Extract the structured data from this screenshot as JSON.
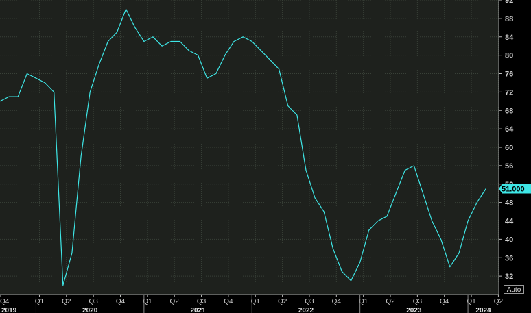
{
  "chart_data": {
    "type": "line",
    "title": "",
    "xlabel": "",
    "ylabel": "",
    "ylim": [
      28,
      92
    ],
    "yticks": [
      32,
      36,
      40,
      44,
      48,
      52,
      56,
      60,
      64,
      68,
      72,
      76,
      80,
      84,
      88,
      92
    ],
    "grid": true,
    "last_value_label": "51.000",
    "colors": {
      "background": "#1e211d",
      "line": "#3ee6e6",
      "grid": "#394138",
      "last_value_bg": "#3ee6e6"
    },
    "quarter_ticks": [
      "Q4",
      "Q1",
      "Q2",
      "Q3",
      "Q4",
      "Q1",
      "Q2",
      "Q3",
      "Q4",
      "Q1",
      "Q2",
      "Q3",
      "Q4",
      "Q1",
      "Q2",
      "Q3",
      "Q4",
      "Q1",
      "Q2"
    ],
    "years": [
      "2019",
      "2020",
      "2021",
      "2022",
      "2023",
      "2024"
    ],
    "series": [
      {
        "values": [
          {
            "x": "2019-09",
            "y": 70
          },
          {
            "x": "2019-10",
            "y": 71
          },
          {
            "x": "2019-11",
            "y": 71
          },
          {
            "x": "2019-12",
            "y": 76
          },
          {
            "x": "2020-01",
            "y": 75
          },
          {
            "x": "2020-02",
            "y": 74
          },
          {
            "x": "2020-03",
            "y": 72
          },
          {
            "x": "2020-04",
            "y": 30
          },
          {
            "x": "2020-05",
            "y": 37
          },
          {
            "x": "2020-06",
            "y": 58
          },
          {
            "x": "2020-07",
            "y": 72
          },
          {
            "x": "2020-08",
            "y": 78
          },
          {
            "x": "2020-09",
            "y": 83
          },
          {
            "x": "2020-10",
            "y": 85
          },
          {
            "x": "2020-11",
            "y": 90
          },
          {
            "x": "2020-12",
            "y": 86
          },
          {
            "x": "2021-01",
            "y": 83
          },
          {
            "x": "2021-02",
            "y": 84
          },
          {
            "x": "2021-03",
            "y": 82
          },
          {
            "x": "2021-04",
            "y": 83
          },
          {
            "x": "2021-05",
            "y": 83
          },
          {
            "x": "2021-06",
            "y": 81
          },
          {
            "x": "2021-07",
            "y": 80
          },
          {
            "x": "2021-08",
            "y": 75
          },
          {
            "x": "2021-09",
            "y": 76
          },
          {
            "x": "2021-10",
            "y": 80
          },
          {
            "x": "2021-11",
            "y": 83
          },
          {
            "x": "2021-12",
            "y": 84
          },
          {
            "x": "2022-01",
            "y": 83
          },
          {
            "x": "2022-02",
            "y": 81
          },
          {
            "x": "2022-03",
            "y": 79
          },
          {
            "x": "2022-04",
            "y": 77
          },
          {
            "x": "2022-05",
            "y": 69
          },
          {
            "x": "2022-06",
            "y": 67
          },
          {
            "x": "2022-07",
            "y": 55
          },
          {
            "x": "2022-08",
            "y": 49
          },
          {
            "x": "2022-09",
            "y": 46
          },
          {
            "x": "2022-10",
            "y": 38
          },
          {
            "x": "2022-11",
            "y": 33
          },
          {
            "x": "2022-12",
            "y": 31
          },
          {
            "x": "2023-01",
            "y": 35
          },
          {
            "x": "2023-02",
            "y": 42
          },
          {
            "x": "2023-03",
            "y": 44
          },
          {
            "x": "2023-04",
            "y": 45
          },
          {
            "x": "2023-05",
            "y": 50
          },
          {
            "x": "2023-06",
            "y": 55
          },
          {
            "x": "2023-07",
            "y": 56
          },
          {
            "x": "2023-08",
            "y": 50
          },
          {
            "x": "2023-09",
            "y": 44
          },
          {
            "x": "2023-10",
            "y": 40
          },
          {
            "x": "2023-11",
            "y": 34
          },
          {
            "x": "2023-12",
            "y": 37
          },
          {
            "x": "2024-01",
            "y": 44
          },
          {
            "x": "2024-02",
            "y": 48
          },
          {
            "x": "2024-03",
            "y": 51
          }
        ]
      }
    ]
  },
  "controls": {
    "auto_label": "Auto"
  }
}
